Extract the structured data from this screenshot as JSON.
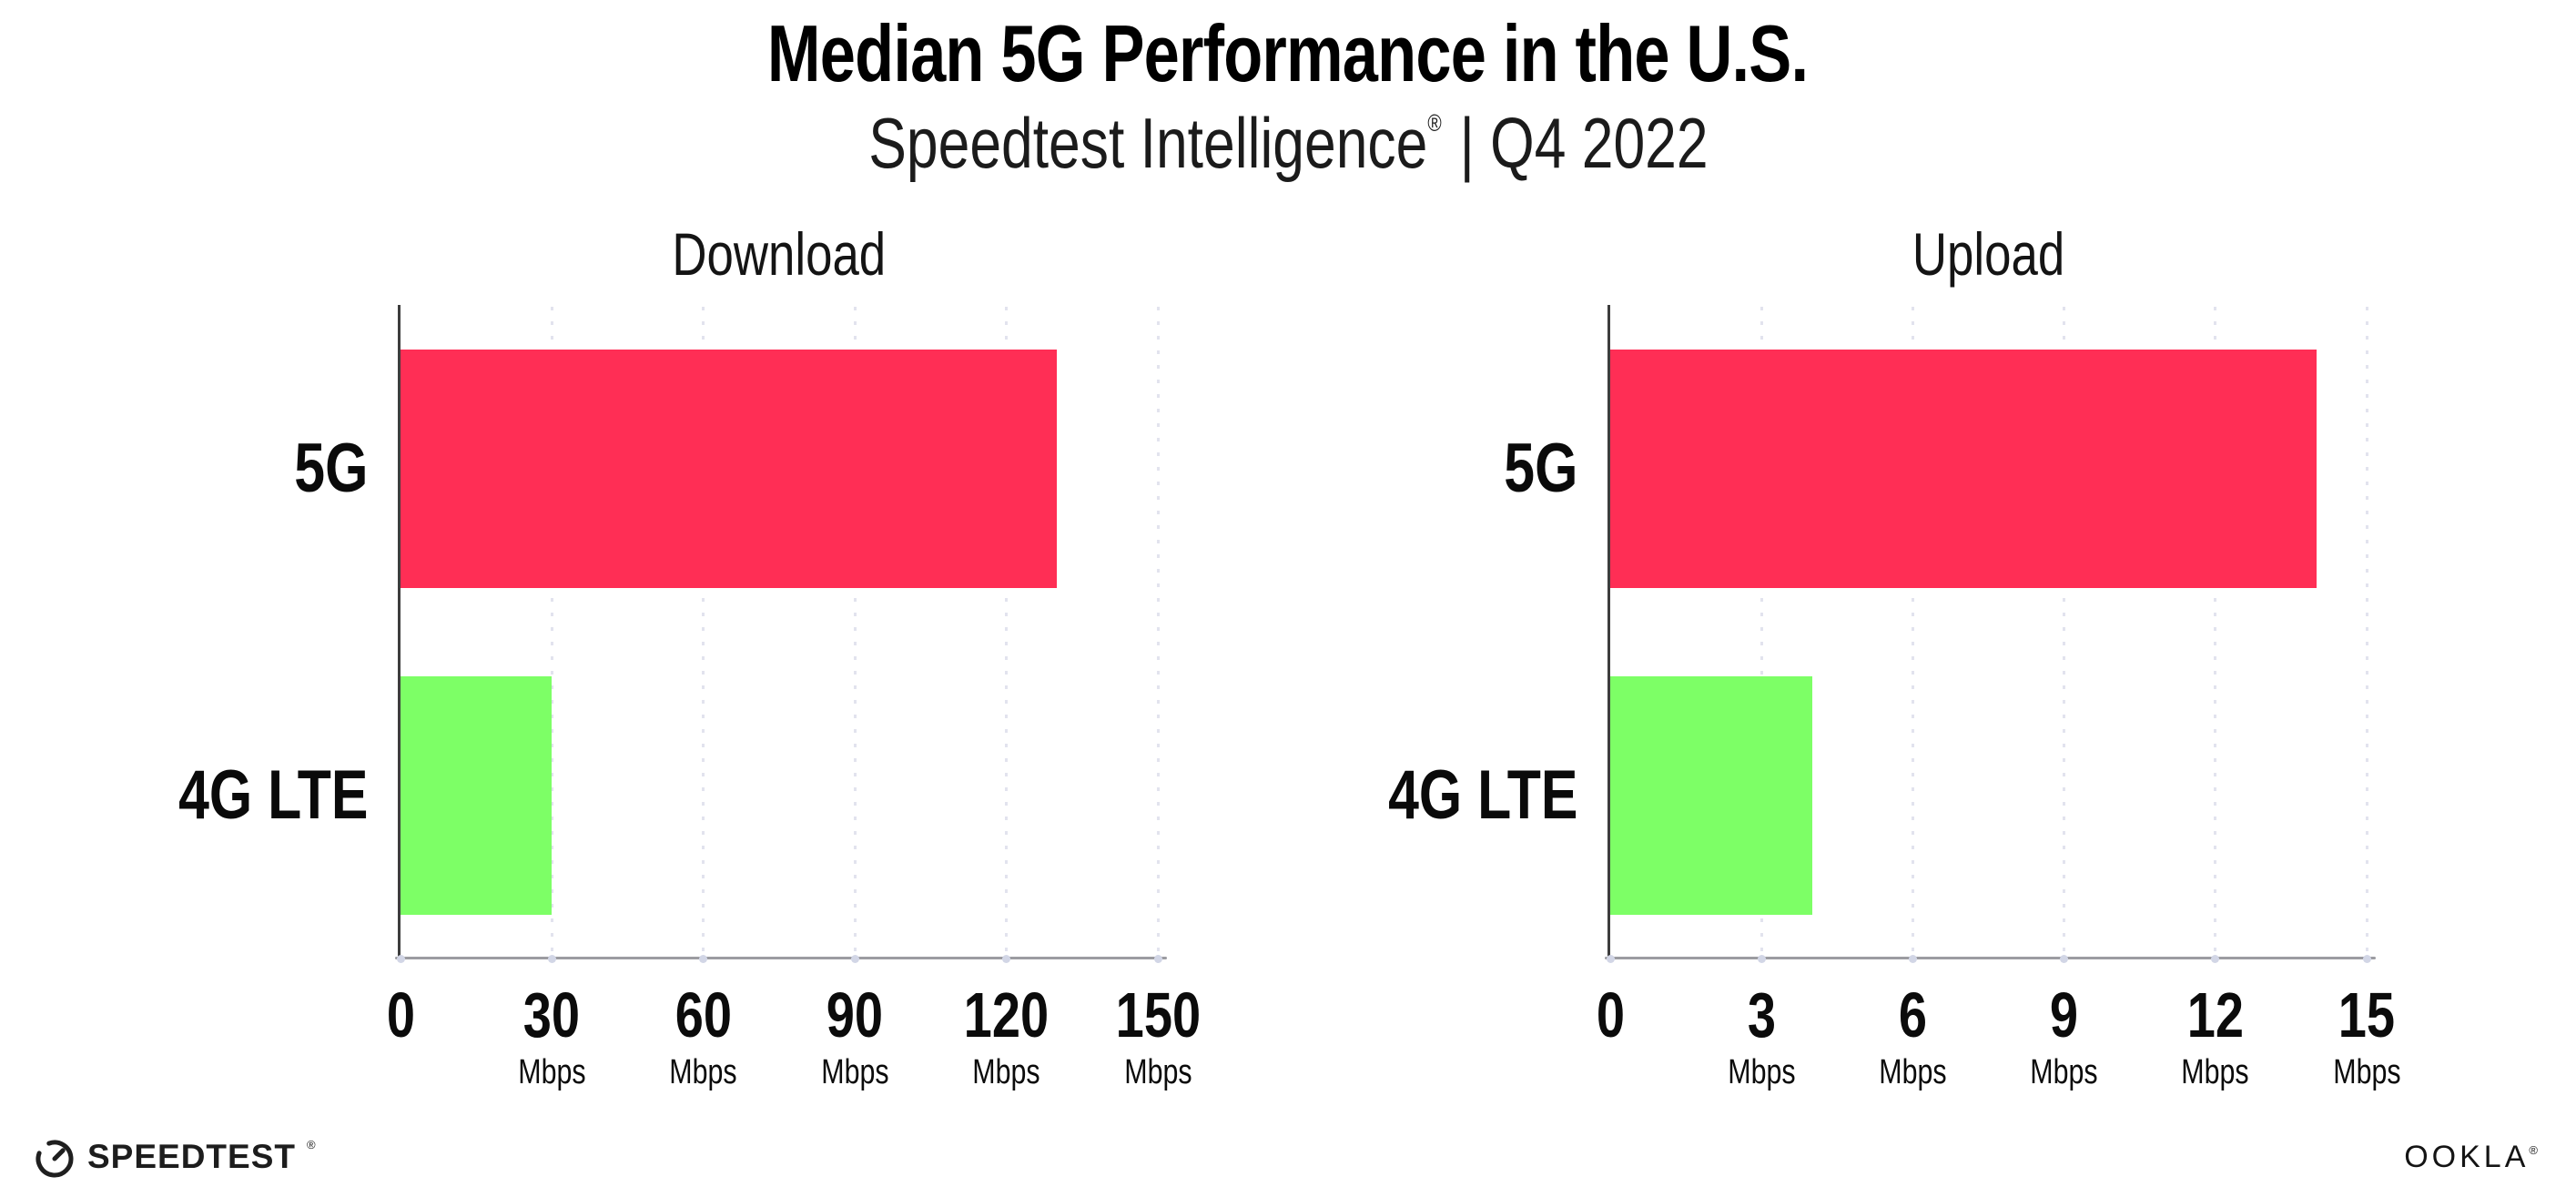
{
  "header": {
    "title": "Median 5G Performance in the U.S.",
    "subtitle_product": "Speedtest Intelligence",
    "subtitle_reg": "®",
    "subtitle_rest": "| Q4 2022"
  },
  "chart_data": [
    {
      "type": "bar",
      "orientation": "horizontal",
      "title": "Download",
      "categories": [
        "5G",
        "4G LTE"
      ],
      "values": [
        130,
        30
      ],
      "unit": "Mbps",
      "xticks": [
        0,
        30,
        60,
        90,
        120,
        150
      ],
      "xlim": [
        0,
        150
      ],
      "bar_colors": [
        "#FF2E55",
        "#7DFF66"
      ],
      "grid": "dotted-vertical",
      "legend": "none"
    },
    {
      "type": "bar",
      "orientation": "horizontal",
      "title": "Upload",
      "categories": [
        "5G",
        "4G LTE"
      ],
      "values": [
        14,
        4
      ],
      "unit": "Mbps",
      "xticks": [
        0,
        3,
        6,
        9,
        12,
        15
      ],
      "xlim": [
        0,
        15
      ],
      "bar_colors": [
        "#FF2E55",
        "#7DFF66"
      ],
      "grid": "dotted-vertical",
      "legend": "none"
    }
  ],
  "colors": {
    "bar_5g": "#FF2E55",
    "bar_4g_lte": "#7DFF66",
    "y_spine": "#3D3D3D",
    "x_axis": "#9C9CA1",
    "gridline": "#E2E3EE",
    "background": "#FFFFFF",
    "text": "#0B0B0B"
  },
  "footer": {
    "speedtest_logo_text": "SPEEDTEST",
    "speedtest_reg": "®",
    "ookla_logo_text": "OOKLA",
    "ookla_reg": "®"
  }
}
